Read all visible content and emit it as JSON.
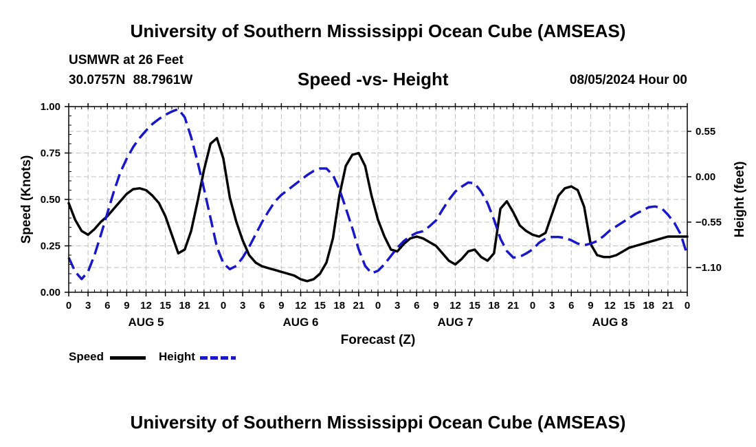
{
  "header": {
    "title": "University of Southern Mississippi Ocean Cube (AMSEAS)",
    "station": "USMWR at 26 Feet",
    "coordinates": "30.0757N  88.7961W",
    "chart_title": "Speed -vs- Height",
    "datetime": "08/05/2024 Hour 00"
  },
  "footer": {
    "title": "University of Southern Mississippi Ocean Cube (AMSEAS)"
  },
  "legend": {
    "speed_label": "Speed",
    "height_label": "Height"
  },
  "colors": {
    "speed": "#000000",
    "height": "#1818c8",
    "grid": "#c0c0c0"
  },
  "chart_data": {
    "type": "line",
    "title": "Speed -vs- Height",
    "xlabel": "Forecast (Z)",
    "ylabel": "Speed (Knots)",
    "y2label": "Height (feet)",
    "x_range_hours": [
      0,
      96
    ],
    "x_tick_labels": [
      "0",
      "3",
      "6",
      "9",
      "12",
      "15",
      "18",
      "21",
      "0",
      "3",
      "6",
      "9",
      "12",
      "15",
      "18",
      "21",
      "0",
      "3",
      "6",
      "9",
      "12",
      "15",
      "18",
      "21",
      "0",
      "3",
      "6",
      "9",
      "12",
      "15",
      "18",
      "21",
      "0"
    ],
    "day_labels": [
      "AUG 5",
      "AUG 6",
      "AUG 7",
      "AUG 8"
    ],
    "ylim": [
      0,
      1
    ],
    "y_ticks": [
      "0.00",
      "0.25",
      "0.50",
      "0.75",
      "1.00"
    ],
    "y2lim": [
      -1.4,
      0.85
    ],
    "y2_ticks": [
      {
        "value": 0.55,
        "label": "0.55"
      },
      {
        "value": 0.0,
        "label": "0.00"
      },
      {
        "value": -0.55,
        "label": "−0.55"
      },
      {
        "value": -1.1,
        "label": "−1.10"
      }
    ],
    "grid": true,
    "series": [
      {
        "name": "Speed",
        "axis": "left",
        "style": "solid",
        "x": [
          0,
          1,
          2,
          3,
          4,
          5,
          6,
          7,
          8,
          9,
          10,
          11,
          12,
          13,
          14,
          15,
          16,
          17,
          18,
          19,
          20,
          21,
          22,
          23,
          24,
          25,
          26,
          27,
          28,
          29,
          30,
          31,
          32,
          33,
          34,
          35,
          36,
          37,
          38,
          39,
          40,
          41,
          42,
          43,
          44,
          45,
          46,
          47,
          48,
          49,
          50,
          51,
          52,
          53,
          54,
          55,
          56,
          57,
          58,
          59,
          60,
          61,
          62,
          63,
          64,
          65,
          66,
          67,
          68,
          69,
          70,
          71,
          72,
          73,
          74,
          75,
          76,
          77,
          78,
          79,
          80,
          81,
          82,
          83,
          84,
          85,
          86,
          87,
          88,
          89,
          90,
          91,
          92,
          93,
          94,
          95,
          96
        ],
        "values": [
          0.48,
          0.39,
          0.33,
          0.31,
          0.34,
          0.38,
          0.41,
          0.45,
          0.49,
          0.53,
          0.555,
          0.56,
          0.55,
          0.52,
          0.48,
          0.41,
          0.31,
          0.21,
          0.23,
          0.33,
          0.49,
          0.66,
          0.8,
          0.83,
          0.72,
          0.51,
          0.38,
          0.28,
          0.2,
          0.16,
          0.14,
          0.13,
          0.12,
          0.11,
          0.1,
          0.09,
          0.07,
          0.06,
          0.07,
          0.1,
          0.16,
          0.29,
          0.52,
          0.68,
          0.74,
          0.75,
          0.68,
          0.52,
          0.39,
          0.3,
          0.23,
          0.22,
          0.26,
          0.29,
          0.3,
          0.29,
          0.27,
          0.25,
          0.21,
          0.17,
          0.15,
          0.18,
          0.22,
          0.23,
          0.19,
          0.17,
          0.21,
          0.45,
          0.49,
          0.43,
          0.36,
          0.33,
          0.31,
          0.3,
          0.32,
          0.42,
          0.52,
          0.56,
          0.57,
          0.55,
          0.46,
          0.26,
          0.2,
          0.19,
          0.19,
          0.2,
          0.22,
          0.24,
          0.25,
          0.26,
          0.27,
          0.28,
          0.29,
          0.3,
          0.3,
          0.3,
          0.3
        ]
      },
      {
        "name": "Height",
        "axis": "right",
        "style": "dashed",
        "x": [
          0,
          1,
          2,
          3,
          4,
          5,
          6,
          7,
          8,
          9,
          10,
          11,
          12,
          13,
          14,
          15,
          16,
          17,
          18,
          19,
          20,
          21,
          22,
          23,
          24,
          25,
          26,
          27,
          28,
          29,
          30,
          31,
          32,
          33,
          34,
          35,
          36,
          37,
          38,
          39,
          40,
          41,
          42,
          43,
          44,
          45,
          46,
          47,
          48,
          49,
          50,
          51,
          52,
          53,
          54,
          55,
          56,
          57,
          58,
          59,
          60,
          61,
          62,
          63,
          64,
          65,
          66,
          67,
          68,
          69,
          70,
          71,
          72,
          73,
          74,
          75,
          76,
          77,
          78,
          79,
          80,
          81,
          82,
          83,
          84,
          85,
          86,
          87,
          88,
          89,
          90,
          91,
          92,
          93,
          94,
          95,
          96
        ],
        "values": [
          -0.98,
          -1.15,
          -1.24,
          -1.15,
          -0.95,
          -0.7,
          -0.44,
          -0.18,
          0.05,
          0.22,
          0.36,
          0.47,
          0.56,
          0.64,
          0.7,
          0.75,
          0.79,
          0.82,
          0.72,
          0.48,
          0.18,
          -0.15,
          -0.5,
          -0.85,
          -1.05,
          -1.12,
          -1.08,
          -0.98,
          -0.85,
          -0.7,
          -0.55,
          -0.42,
          -0.3,
          -0.22,
          -0.16,
          -0.1,
          -0.04,
          0.02,
          0.07,
          0.1,
          0.1,
          0.02,
          -0.15,
          -0.38,
          -0.62,
          -0.88,
          -1.08,
          -1.17,
          -1.14,
          -1.06,
          -0.96,
          -0.86,
          -0.78,
          -0.72,
          -0.68,
          -0.66,
          -0.6,
          -0.53,
          -0.4,
          -0.28,
          -0.18,
          -0.12,
          -0.07,
          -0.08,
          -0.18,
          -0.32,
          -0.52,
          -0.75,
          -0.9,
          -0.98,
          -0.97,
          -0.93,
          -0.88,
          -0.8,
          -0.75,
          -0.73,
          -0.73,
          -0.74,
          -0.77,
          -0.81,
          -0.83,
          -0.81,
          -0.78,
          -0.72,
          -0.65,
          -0.6,
          -0.55,
          -0.5,
          -0.45,
          -0.41,
          -0.37,
          -0.36,
          -0.38,
          -0.46,
          -0.56,
          -0.7,
          -0.95
        ]
      }
    ]
  }
}
